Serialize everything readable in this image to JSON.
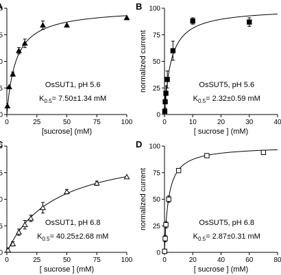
{
  "chart_data": [
    {
      "panel": "A",
      "type": "scatter",
      "xlabel": "[sucrose] (mM)",
      "ylabel": "normalized current",
      "xlim": [
        0,
        100
      ],
      "ylim": [
        0,
        100
      ],
      "xticks": [
        0,
        25,
        50,
        75,
        100
      ],
      "yticks": [
        0,
        25,
        50,
        75,
        100
      ],
      "marker": "filled-triangle",
      "annotation": {
        "line1": "OsSUT1,  pH 5.6",
        "k_label": "K",
        "k_sub": "0.5",
        "k_value": "= 7.50±1.34 mM"
      },
      "fit": {
        "vmax": 100,
        "km": 7.5
      },
      "points": [
        {
          "x": 0.5,
          "y": 8,
          "err": 0
        },
        {
          "x": 2,
          "y": 26,
          "err": 0
        },
        {
          "x": 5,
          "y": 38,
          "err": 2
        },
        {
          "x": 10,
          "y": 60,
          "err": 3
        },
        {
          "x": 15,
          "y": 67,
          "err": 4
        },
        {
          "x": 30,
          "y": 84,
          "err": 4
        },
        {
          "x": 50,
          "y": 84,
          "err": 0
        },
        {
          "x": 100,
          "y": 91,
          "err": 0
        }
      ]
    },
    {
      "panel": "B",
      "type": "scatter",
      "xlabel": "[ sucrose ] (mM)",
      "ylabel": "normalized current",
      "xlim": [
        0,
        40
      ],
      "ylim": [
        0,
        100
      ],
      "xticks": [
        0,
        10,
        20,
        30,
        40
      ],
      "yticks": [
        0,
        25,
        50,
        75,
        100
      ],
      "marker": "filled-square",
      "annotation": {
        "line1": "OsSUT5,  pH 5.6",
        "k_label": "K",
        "k_sub": "0.5",
        "k_value": "= 2.32±0.59 mM"
      },
      "fit": {
        "vmax": 100,
        "km": 2.32
      },
      "points": [
        {
          "x": 0.1,
          "y": 3,
          "err": 2
        },
        {
          "x": 0.25,
          "y": 12,
          "err": 6
        },
        {
          "x": 0.5,
          "y": 20,
          "err": 7
        },
        {
          "x": 1,
          "y": 33,
          "err": 8
        },
        {
          "x": 3,
          "y": 60,
          "err": 9
        },
        {
          "x": 10,
          "y": 88,
          "err": 3
        },
        {
          "x": 30,
          "y": 87,
          "err": 4
        }
      ]
    },
    {
      "panel": "C",
      "type": "scatter",
      "xlabel": "[ sucrose ] (mM)",
      "ylabel": "normalized current",
      "xlim": [
        0,
        100
      ],
      "ylim": [
        0,
        100
      ],
      "xticks": [
        0,
        25,
        50,
        75,
        100
      ],
      "yticks": [
        0,
        25,
        50,
        75,
        100
      ],
      "marker": "open-triangle",
      "annotation": {
        "line1": "OsSUT1,  pH 6.8",
        "k_label": "K",
        "k_sub": "0.5",
        "k_value": "= 40.25±2.68 mM"
      },
      "fit": {
        "vmax": 100,
        "km": 40.25
      },
      "points": [
        {
          "x": 1,
          "y": 2,
          "err": 2
        },
        {
          "x": 5,
          "y": 8,
          "err": 2
        },
        {
          "x": 10,
          "y": 19,
          "err": 3
        },
        {
          "x": 15,
          "y": 26,
          "err": 4
        },
        {
          "x": 20,
          "y": 32,
          "err": 3
        },
        {
          "x": 30,
          "y": 42,
          "err": 5
        },
        {
          "x": 50,
          "y": 57,
          "err": 2
        },
        {
          "x": 75,
          "y": 65,
          "err": 2
        },
        {
          "x": 100,
          "y": 71,
          "err": 0
        }
      ]
    },
    {
      "panel": "D",
      "type": "scatter",
      "xlabel": "[ sucrose ] (mM)",
      "ylabel": "normalized current",
      "xlim": [
        0,
        80
      ],
      "ylim": [
        0,
        100
      ],
      "xticks": [
        0,
        20,
        40,
        60,
        80
      ],
      "yticks": [
        0,
        25,
        50,
        75,
        100
      ],
      "marker": "open-square",
      "annotation": {
        "line1": "OsSUT5,  pH 6.8",
        "k_label": "K",
        "k_sub": "0.5",
        "k_value": "= 2.87±0.31 mM"
      },
      "fit": {
        "vmax": 100,
        "km": 2.87
      },
      "points": [
        {
          "x": 0.1,
          "y": 1,
          "err": 2
        },
        {
          "x": 0.5,
          "y": 13,
          "err": 3
        },
        {
          "x": 1,
          "y": 26,
          "err": 3
        },
        {
          "x": 3,
          "y": 50,
          "err": 3
        },
        {
          "x": 10,
          "y": 77,
          "err": 2
        },
        {
          "x": 30,
          "y": 91,
          "err": 1
        },
        {
          "x": 70,
          "y": 94,
          "err": 1
        }
      ]
    }
  ]
}
